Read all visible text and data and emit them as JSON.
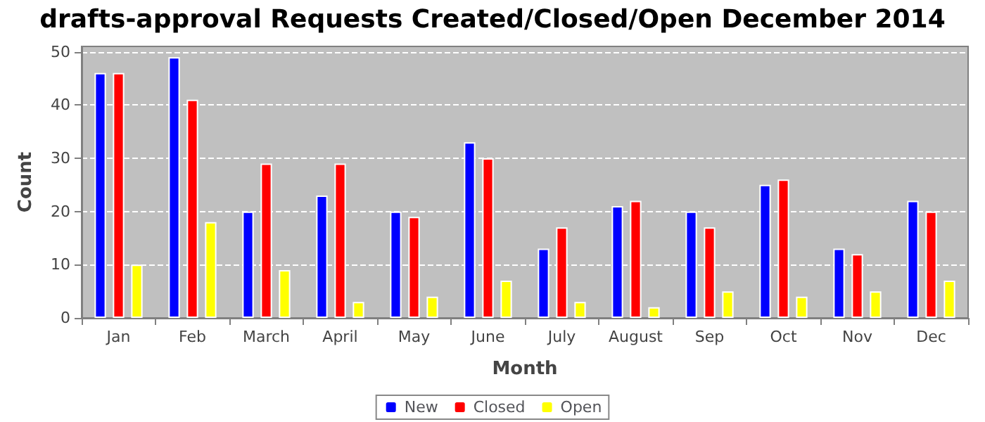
{
  "chart_data": {
    "type": "bar",
    "title": "drafts-approval Requests Created/Closed/Open December 2014",
    "xlabel": "Month",
    "ylabel": "Count",
    "categories": [
      "Jan",
      "Feb",
      "March",
      "April",
      "May",
      "June",
      "July",
      "August",
      "Sep",
      "Oct",
      "Nov",
      "Dec"
    ],
    "series": [
      {
        "name": "New",
        "color": "#0000ff",
        "values": [
          46,
          49,
          20,
          23,
          20,
          33,
          13,
          21,
          20,
          25,
          13,
          22
        ]
      },
      {
        "name": "Closed",
        "color": "#ff0000",
        "values": [
          46,
          41,
          29,
          29,
          19,
          30,
          17,
          22,
          17,
          26,
          12,
          20
        ]
      },
      {
        "name": "Open",
        "color": "#ffff00",
        "values": [
          10,
          18,
          9,
          3,
          4,
          7,
          3,
          2,
          5,
          4,
          5,
          7
        ]
      }
    ],
    "ylim": [
      0,
      51
    ],
    "yticks": [
      0,
      10,
      20,
      30,
      40,
      50
    ],
    "grid": "y",
    "legend": "bottom"
  }
}
